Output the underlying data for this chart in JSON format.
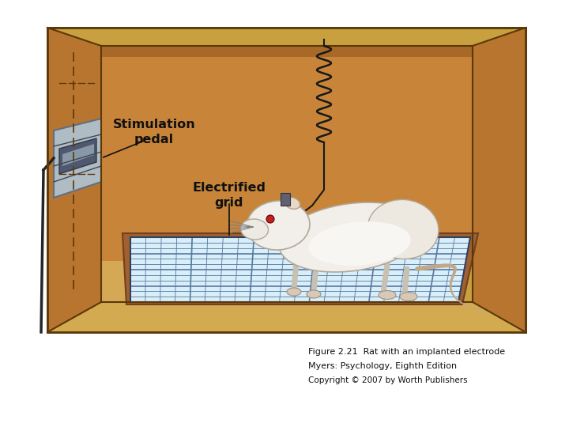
{
  "caption_line1": "Figure 2.21  Rat with an implanted electrode",
  "caption_line2": "Myers: Psychology, Eighth Edition",
  "caption_line3": "Copyright © 2007 by Worth Publishers",
  "bg_color": "#ffffff",
  "back_wall_color": "#c8853a",
  "side_wall_color": "#b87530",
  "floor_color": "#d4a855",
  "ceiling_color": "#c8853a",
  "top_strip_color": "#b87530",
  "outer_frame_color": "#d4a855",
  "border_color": "#7a5010",
  "grid_fill_color": "#d8eef8",
  "grid_line_color": "#8090a0",
  "grid_frame_color": "#8b4010",
  "rat_body_color": "#f0ece4",
  "rat_shadow_color": "#c8c0b0",
  "wire_color": "#202020",
  "panel_color": "#b8c4cc",
  "panel_shadow": "#8090a0",
  "label_pointer_color": "#101010"
}
